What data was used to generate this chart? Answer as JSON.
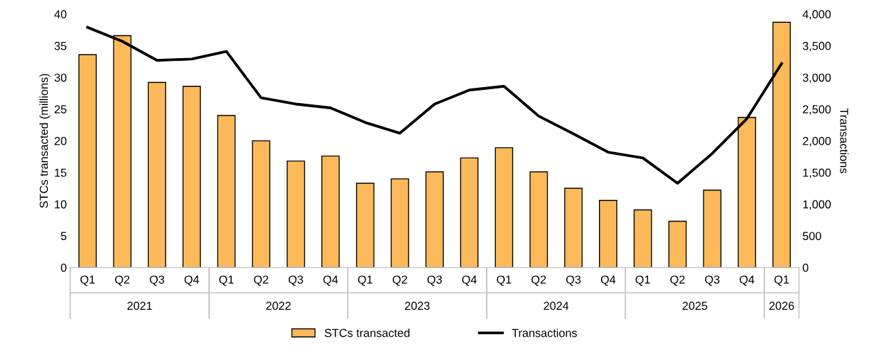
{
  "chart_data": {
    "type": "bar",
    "categories": [
      "Q1",
      "Q2",
      "Q3",
      "Q4",
      "Q1",
      "Q2",
      "Q3",
      "Q4",
      "Q1",
      "Q2",
      "Q3",
      "Q4",
      "Q1",
      "Q2",
      "Q3",
      "Q4",
      "Q1",
      "Q2",
      "Q3",
      "Q4",
      "Q1"
    ],
    "series": [
      {
        "name": "STCs transacted",
        "color": "#fbb95a",
        "values": [
          33.6,
          36.6,
          29.2,
          28.6,
          24.0,
          20.0,
          16.8,
          17.6,
          13.3,
          14.0,
          15.1,
          17.3,
          18.9,
          15.1,
          12.5,
          10.6,
          9.1,
          7.3,
          12.2,
          23.7,
          38.7
        ]
      },
      {
        "name": "Transactions",
        "type": "line",
        "axis": "y2",
        "color": "#000000",
        "values": [
          3790,
          3570,
          3270,
          3290,
          3410,
          2680,
          2580,
          2520,
          2290,
          2120,
          2580,
          2800,
          2860,
          2390,
          2110,
          1820,
          1730,
          1330,
          1800,
          2350,
          3220
        ]
      }
    ],
    "ylabel": "STCs transacted (millions)",
    "y2label": "Transactions",
    "ylim": [
      0,
      40
    ],
    "yticks": [
      0,
      5,
      10,
      15,
      20,
      25,
      30,
      35,
      40
    ],
    "y2lim": [
      0,
      4000
    ],
    "y2ticks": [
      {
        "value": 0,
        "label": "0"
      },
      {
        "value": 500,
        "label": "500"
      },
      {
        "value": 1000,
        "label": "1,000"
      },
      {
        "value": 1500,
        "label": "1,500"
      },
      {
        "value": 2000,
        "label": "2,000"
      },
      {
        "value": 2500,
        "label": "2,500"
      },
      {
        "value": 3000,
        "label": "3,000"
      },
      {
        "value": 3500,
        "label": "3,500"
      },
      {
        "value": 4000,
        "label": "4,000"
      }
    ],
    "annotations": [
      "2021",
      "2022",
      "2023",
      "2024",
      "2025",
      "2026"
    ],
    "grid": false,
    "legend": "bottom",
    "marker": "none",
    "line_style": "solid"
  }
}
